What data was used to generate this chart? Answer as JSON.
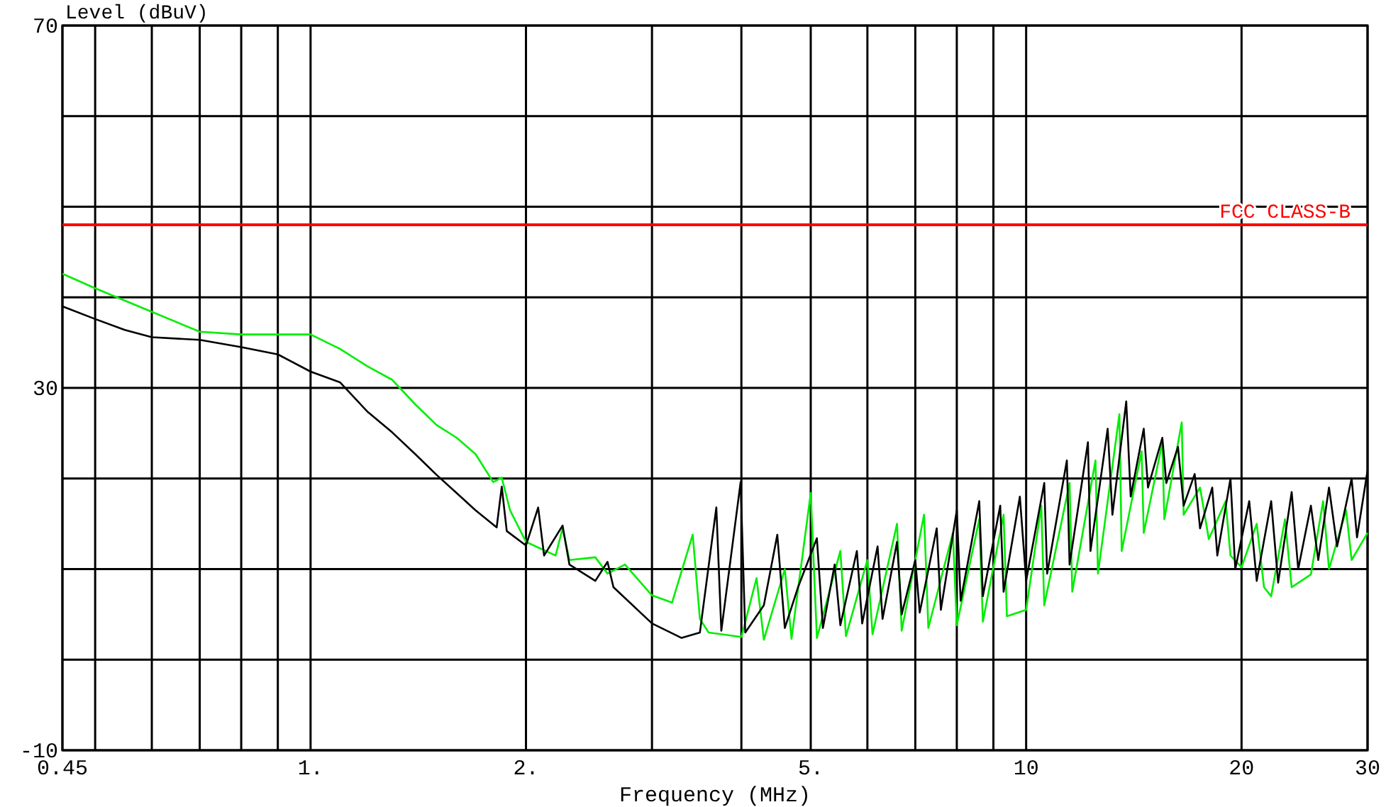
{
  "chart_data": {
    "type": "line",
    "xlabel": "Frequency (MHz)",
    "ylabel": "Level (dBuV)",
    "log": "x",
    "grid": true,
    "xlim": [
      0.45,
      30
    ],
    "ylim": [
      -10,
      70
    ],
    "xticks": [
      {
        "value": 0.45,
        "label": "0.45"
      },
      {
        "value": 0.5,
        "label": null
      },
      {
        "value": 0.6,
        "label": null
      },
      {
        "value": 0.7,
        "label": null
      },
      {
        "value": 0.8,
        "label": null
      },
      {
        "value": 0.9,
        "label": null
      },
      {
        "value": 1,
        "label": "1."
      },
      {
        "value": 2,
        "label": "2."
      },
      {
        "value": 3,
        "label": null
      },
      {
        "value": 4,
        "label": null
      },
      {
        "value": 5,
        "label": "5."
      },
      {
        "value": 6,
        "label": null
      },
      {
        "value": 7,
        "label": null
      },
      {
        "value": 8,
        "label": null
      },
      {
        "value": 9,
        "label": null
      },
      10,
      20,
      30
    ],
    "yticks": [
      -10,
      {
        "value": 0,
        "label": null
      },
      {
        "value": 10,
        "label": null
      },
      {
        "value": 20,
        "label": null
      },
      30,
      {
        "value": 40,
        "label": null
      },
      {
        "value": 50,
        "label": null
      },
      {
        "value": 60,
        "label": null
      },
      70
    ],
    "ref_lines": [
      {
        "axis": "y",
        "value": 48,
        "label": "FCC CLASS-B",
        "color": "#ff0000"
      }
    ],
    "series": [
      {
        "color": "#00ee00",
        "x": [
          0.45,
          0.5,
          0.6,
          0.7,
          0.8,
          0.9,
          1.0,
          1.1,
          1.2,
          1.3,
          1.4,
          1.5,
          1.6,
          1.7,
          1.8,
          1.85,
          1.9,
          2.0,
          2.2,
          2.25,
          2.3,
          2.5,
          2.6,
          2.75,
          3.0,
          3.2,
          3.42,
          3.5,
          3.6,
          4.0,
          4.2,
          4.3,
          4.6,
          4.7,
          5.0,
          5.1,
          5.5,
          5.6,
          6.0,
          6.1,
          6.6,
          6.7,
          7.2,
          7.3,
          7.9,
          8.0,
          8.6,
          8.7,
          9.3,
          9.4,
          10.0,
          10.5,
          10.6,
          11.5,
          11.6,
          12.5,
          12.6,
          13.5,
          13.6,
          14.5,
          14.6,
          15.5,
          15.6,
          16.5,
          16.6,
          17.5,
          18.0,
          19.0,
          19.3,
          20.0,
          21.0,
          21.5,
          22.0,
          23.0,
          23.5,
          25.0,
          26.0,
          26.5,
          28.0,
          28.5,
          30.0
        ],
        "values": [
          42.6,
          41.0,
          38.4,
          36.2,
          35.9,
          35.9,
          35.9,
          34.3,
          32.4,
          30.9,
          28.2,
          25.9,
          24.5,
          22.7,
          19.6,
          20.1,
          16.5,
          13.0,
          11.5,
          14.5,
          11.0,
          11.3,
          9.5,
          10.5,
          7.1,
          6.3,
          13.8,
          4.5,
          3.0,
          2.5,
          9.0,
          2.2,
          10.0,
          2.3,
          18.4,
          2.4,
          12.0,
          2.6,
          11.0,
          2.8,
          15.0,
          3.2,
          16.0,
          3.5,
          14.0,
          3.8,
          15.5,
          4.2,
          16.0,
          4.8,
          5.5,
          17.0,
          6.0,
          19.5,
          7.5,
          22.0,
          9.5,
          27.1,
          12.0,
          23.0,
          14.0,
          24.0,
          15.5,
          26.2,
          16.0,
          19.0,
          13.3,
          17.5,
          11.5,
          10.2,
          15.0,
          8.0,
          7.0,
          15.5,
          8.0,
          9.4,
          17.5,
          10.0,
          16.5,
          11.0,
          14.0
        ]
      },
      {
        "color": "#000000",
        "x": [
          0.45,
          0.5,
          0.55,
          0.6,
          0.7,
          0.8,
          0.9,
          1.0,
          1.1,
          1.2,
          1.3,
          1.4,
          1.5,
          1.6,
          1.7,
          1.82,
          1.85,
          1.88,
          2.0,
          2.08,
          2.12,
          2.25,
          2.3,
          2.5,
          2.6,
          2.65,
          3.0,
          3.3,
          3.5,
          3.69,
          3.75,
          3.99,
          4.05,
          4.3,
          4.49,
          4.6,
          4.8,
          5.1,
          5.2,
          5.4,
          5.5,
          5.8,
          5.9,
          6.2,
          6.3,
          6.6,
          6.7,
          7.0,
          7.1,
          7.5,
          7.6,
          8.0,
          8.1,
          8.6,
          8.7,
          9.2,
          9.3,
          9.8,
          10.0,
          10.6,
          10.7,
          11.4,
          11.5,
          12.2,
          12.3,
          13.0,
          13.2,
          13.8,
          14.0,
          14.6,
          14.8,
          15.5,
          15.7,
          16.3,
          16.6,
          17.2,
          17.5,
          18.2,
          18.5,
          19.3,
          19.6,
          20.5,
          21.0,
          22.0,
          22.5,
          23.5,
          24.0,
          25.0,
          25.6,
          26.5,
          27.2,
          28.5,
          29.0,
          30.0
        ],
        "values": [
          39.0,
          37.6,
          36.4,
          35.6,
          35.3,
          34.5,
          33.7,
          31.8,
          30.6,
          27.4,
          25.1,
          22.7,
          20.4,
          18.4,
          16.5,
          14.6,
          19.1,
          14.2,
          12.6,
          16.8,
          11.5,
          14.8,
          10.5,
          8.7,
          10.8,
          8.0,
          4.0,
          2.4,
          3.0,
          16.8,
          3.2,
          19.6,
          3.0,
          6.0,
          13.8,
          3.5,
          8.0,
          13.4,
          3.5,
          10.5,
          3.8,
          12.0,
          4.0,
          12.5,
          4.5,
          13.0,
          5.0,
          11.0,
          5.2,
          14.5,
          5.5,
          16.5,
          6.5,
          17.5,
          7.0,
          17.0,
          7.5,
          18.0,
          8.7,
          19.5,
          9.5,
          22.0,
          10.5,
          24.0,
          12.0,
          25.5,
          16.0,
          28.5,
          18.0,
          25.5,
          19.0,
          24.5,
          19.5,
          23.5,
          17.0,
          20.5,
          14.5,
          19.0,
          11.5,
          20.0,
          10.0,
          17.5,
          8.7,
          17.5,
          8.5,
          18.5,
          10.0,
          17.0,
          11.0,
          19.0,
          12.5,
          20.0,
          13.5,
          20.9
        ]
      }
    ]
  }
}
